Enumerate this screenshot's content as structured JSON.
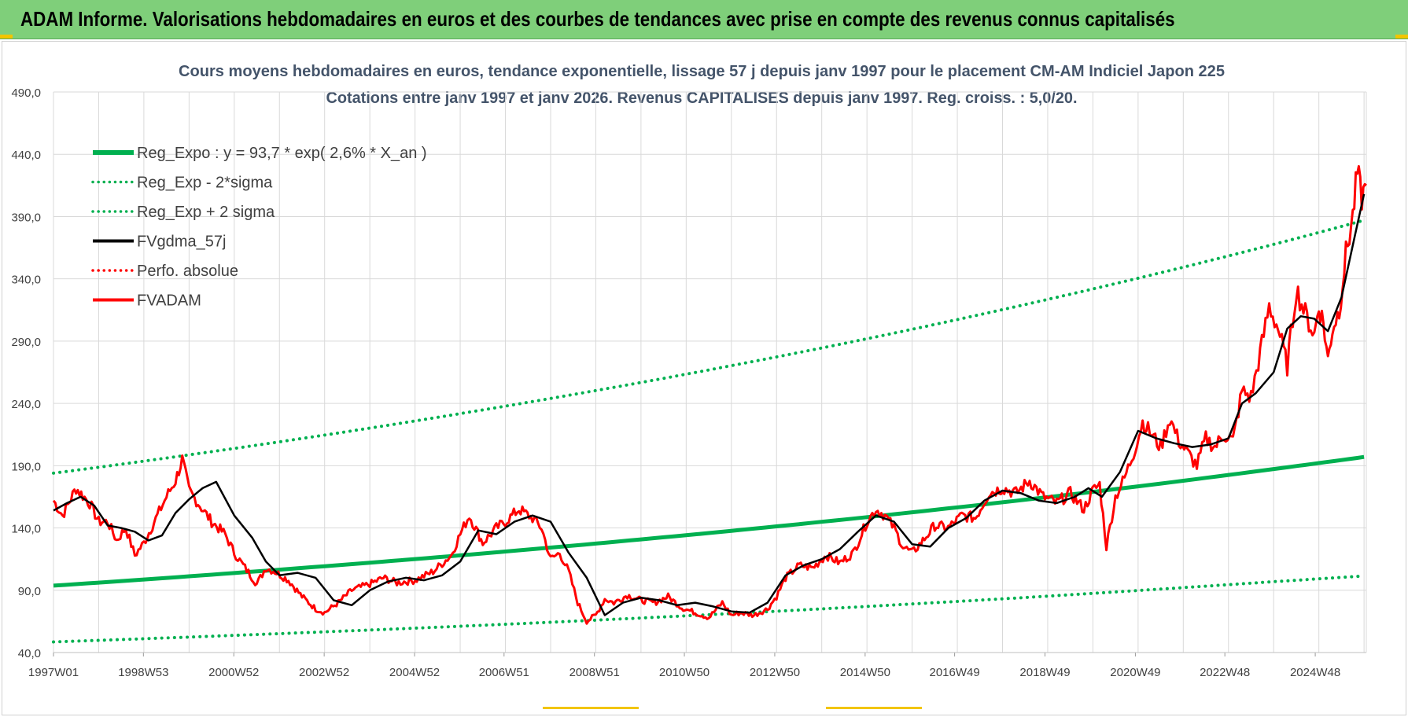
{
  "header": {
    "title": "ADAM Informe. Valorisations hebdomadaires en euros et des courbes de tendances avec prise en compte des revenus connus capitalisés"
  },
  "colors": {
    "header_bg": "#7fcf7a",
    "reg_green": "#00b050",
    "fv_black": "#000000",
    "fvadam_red": "#ff0000",
    "axis_text": "#404040",
    "title_text": "#44546a",
    "grid": "#d9d9d9"
  },
  "chart_data": {
    "type": "line",
    "title_line1": "Cours moyens hebdomadaires en euros, tendance exponentielle, lissage 57 j depuis janv 1997  pour le placement CM-AM Indiciel Japon 225",
    "title_line2": "Cotations entre janv 1997 et janv 2026. Revenus CAPITALISES depuis janv 1997. Reg. croiss. : 5,0/20.",
    "xlabel": "",
    "ylabel": "",
    "x_range": [
      1997.0,
      2026.05
    ],
    "ylim": [
      40,
      490
    ],
    "y_ticks": [
      "490,0",
      "440,0",
      "390,0",
      "340,0",
      "290,0",
      "240,0",
      "190,0",
      "140,0",
      "90,0",
      "40,0"
    ],
    "x_ticks": [
      {
        "t": 1997.0,
        "label": "1997W01"
      },
      {
        "t": 1998.99,
        "label": "1998W53"
      },
      {
        "t": 2000.99,
        "label": "2000W52"
      },
      {
        "t": 2002.99,
        "label": "2002W52"
      },
      {
        "t": 2004.99,
        "label": "2004W52"
      },
      {
        "t": 2006.97,
        "label": "2006W51"
      },
      {
        "t": 2008.97,
        "label": "2008W51"
      },
      {
        "t": 2010.96,
        "label": "2010W50"
      },
      {
        "t": 2012.96,
        "label": "2012W50"
      },
      {
        "t": 2014.96,
        "label": "2014W50"
      },
      {
        "t": 2016.94,
        "label": "2016W49"
      },
      {
        "t": 2018.94,
        "label": "2018W49"
      },
      {
        "t": 2020.94,
        "label": "2020W49"
      },
      {
        "t": 2022.92,
        "label": "2022W48"
      },
      {
        "t": 2024.92,
        "label": "2024W48"
      }
    ],
    "grid": true,
    "legend_position": "top-left",
    "legend": [
      {
        "label": "Reg_Expo : y = 93,7 * exp( 2,6% *  X_an )",
        "style": "solid-thick",
        "color": "#00b050"
      },
      {
        "label": "Reg_Exp - 2*sigma",
        "style": "dotted",
        "color": "#00b050"
      },
      {
        "label": "Reg_Exp + 2 sigma",
        "style": "dotted",
        "color": "#00b050"
      },
      {
        "label": "FVgdma_57j",
        "style": "solid",
        "color": "#000000"
      },
      {
        "label": "Perfo. absolue",
        "style": "dotted",
        "color": "#ff0000"
      },
      {
        "label": "FVADAM",
        "style": "solid",
        "color": "#ff0000"
      }
    ],
    "series": [
      {
        "name": "Reg_Expo : y = 93,7 * exp( 2,6% *  X_an )",
        "x": [
          1997.0,
          2000.0,
          2003.0,
          2006.0,
          2009.0,
          2012.0,
          2015.0,
          2018.0,
          2021.0,
          2024.0,
          2026.0
        ],
        "y": [
          93.7,
          101.2,
          109.3,
          118.0,
          127.5,
          137.7,
          148.7,
          160.6,
          173.4,
          187.3,
          197.0
        ]
      },
      {
        "name": "Reg_Exp - 2*sigma",
        "x": [
          1997.0,
          2000.0,
          2003.0,
          2006.0,
          2009.0,
          2012.0,
          2015.0,
          2018.0,
          2021.0,
          2024.0,
          2026.0
        ],
        "y": [
          48.5,
          52.4,
          56.6,
          61.1,
          66.0,
          71.3,
          77.0,
          83.1,
          89.8,
          96.9,
          101.5
        ]
      },
      {
        "name": "Reg_Exp + 2 sigma",
        "x": [
          1997.0,
          2000.0,
          2003.0,
          2006.0,
          2009.0,
          2012.0,
          2015.0,
          2018.0,
          2021.0,
          2024.0,
          2026.0
        ],
        "y": [
          184.0,
          198.7,
          214.6,
          231.8,
          250.3,
          270.3,
          291.9,
          315.3,
          340.5,
          367.7,
          387.0
        ]
      },
      {
        "name": "FVgdma_57j",
        "x": [
          1997.0,
          1997.3,
          1997.6,
          1997.9,
          1998.2,
          1998.5,
          1998.8,
          1999.1,
          1999.4,
          1999.7,
          2000.0,
          2000.3,
          2000.6,
          2001.0,
          2001.4,
          2001.7,
          2002.0,
          2002.4,
          2002.8,
          2003.2,
          2003.6,
          2004.0,
          2004.4,
          2004.8,
          2005.2,
          2005.6,
          2006.0,
          2006.4,
          2006.8,
          2007.2,
          2007.6,
          2008.0,
          2008.4,
          2008.8,
          2009.2,
          2009.6,
          2010.0,
          2010.4,
          2010.8,
          2011.2,
          2011.6,
          2012.0,
          2012.4,
          2012.8,
          2013.2,
          2013.6,
          2014.0,
          2014.4,
          2014.8,
          2015.2,
          2015.6,
          2016.0,
          2016.4,
          2016.8,
          2017.2,
          2017.6,
          2018.0,
          2018.4,
          2018.8,
          2019.2,
          2019.6,
          2019.9,
          2020.2,
          2020.6,
          2021.0,
          2021.4,
          2021.8,
          2022.2,
          2022.6,
          2023.0,
          2023.3,
          2023.6,
          2024.0,
          2024.3,
          2024.6,
          2024.9,
          2025.2,
          2025.5,
          2025.8,
          2026.0
        ],
        "y": [
          154,
          160,
          165,
          158,
          142,
          140,
          137,
          130,
          134,
          152,
          163,
          172,
          177,
          150,
          132,
          113,
          102,
          104,
          100,
          82,
          78,
          90,
          97,
          100,
          98,
          102,
          113,
          138,
          135,
          145,
          150,
          145,
          120,
          100,
          70,
          80,
          84,
          82,
          78,
          80,
          77,
          73,
          72,
          80,
          102,
          110,
          115,
          123,
          137,
          150,
          145,
          127,
          125,
          140,
          148,
          162,
          170,
          168,
          162,
          160,
          165,
          172,
          165,
          185,
          218,
          212,
          208,
          205,
          207,
          212,
          240,
          248,
          265,
          300,
          310,
          308,
          298,
          325,
          375,
          408
        ]
      },
      {
        "name": "FVADAM",
        "x": [
          1997.0,
          1997.2,
          1997.5,
          1997.8,
          1998.0,
          1998.2,
          1998.4,
          1998.6,
          1998.8,
          1999.0,
          1999.3,
          1999.5,
          1999.7,
          1999.85,
          2000.0,
          2000.2,
          2000.5,
          2000.8,
          2001.0,
          2001.2,
          2001.5,
          2001.7,
          2001.9,
          2002.2,
          2002.5,
          2002.8,
          2003.0,
          2003.3,
          2003.6,
          2004.0,
          2004.3,
          2004.6,
          2005.0,
          2005.4,
          2005.8,
          2006.0,
          2006.2,
          2006.5,
          2006.8,
          2007.0,
          2007.3,
          2007.6,
          2007.8,
          2008.0,
          2008.2,
          2008.4,
          2008.6,
          2008.8,
          2009.0,
          2009.2,
          2009.4,
          2009.7,
          2010.0,
          2010.3,
          2010.6,
          2010.9,
          2011.2,
          2011.5,
          2011.8,
          2012.0,
          2012.2,
          2012.5,
          2012.8,
          2013.0,
          2013.2,
          2013.5,
          2013.8,
          2014.1,
          2014.4,
          2014.7,
          2015.0,
          2015.2,
          2015.4,
          2015.6,
          2015.8,
          2016.0,
          2016.2,
          2016.5,
          2016.8,
          2017.1,
          2017.4,
          2017.7,
          2018.0,
          2018.3,
          2018.6,
          2018.9,
          2019.2,
          2019.5,
          2019.8,
          2020.0,
          2020.15,
          2020.3,
          2020.5,
          2020.7,
          2020.9,
          2021.1,
          2021.3,
          2021.5,
          2021.7,
          2021.9,
          2022.1,
          2022.3,
          2022.5,
          2022.7,
          2022.9,
          2023.1,
          2023.3,
          2023.5,
          2023.7,
          2023.9,
          2024.1,
          2024.3,
          2024.5,
          2024.7,
          2024.9,
          2025.0,
          2025.1,
          2025.2,
          2025.3,
          2025.45,
          2025.6,
          2025.75,
          2025.85,
          2025.95,
          2026.05
        ],
        "y": [
          162,
          150,
          172,
          160,
          145,
          145,
          130,
          140,
          118,
          128,
          150,
          165,
          178,
          195,
          170,
          160,
          145,
          135,
          120,
          110,
          95,
          108,
          105,
          98,
          85,
          75,
          72,
          80,
          90,
          95,
          100,
          96,
          98,
          105,
          118,
          135,
          150,
          128,
          140,
          145,
          155,
          148,
          140,
          115,
          120,
          105,
          80,
          65,
          70,
          83,
          80,
          86,
          82,
          80,
          85,
          76,
          72,
          68,
          80,
          70,
          72,
          70,
          75,
          85,
          100,
          110,
          108,
          118,
          112,
          120,
          145,
          155,
          150,
          140,
          125,
          120,
          128,
          142,
          140,
          150,
          148,
          168,
          172,
          168,
          178,
          165,
          160,
          168,
          155,
          170,
          175,
          125,
          165,
          180,
          200,
          225,
          215,
          205,
          228,
          210,
          200,
          190,
          212,
          205,
          215,
          210,
          250,
          245,
          280,
          318,
          300,
          270,
          332,
          312,
          295,
          318,
          305,
          275,
          300,
          315,
          360,
          390,
          425,
          405,
          415
        ]
      }
    ]
  }
}
